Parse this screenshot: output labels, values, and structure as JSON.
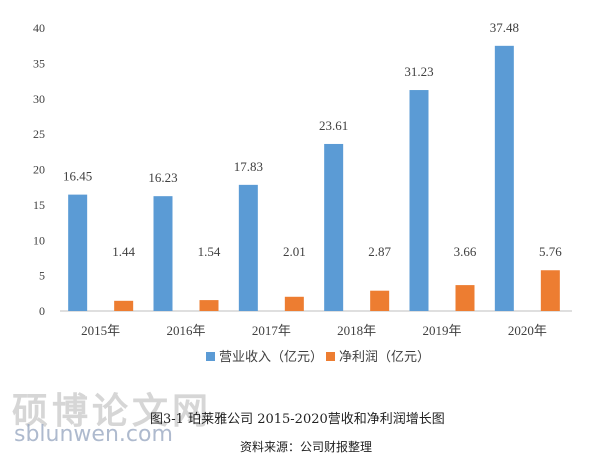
{
  "chart_data": {
    "type": "bar",
    "categories": [
      "2015年",
      "2016年",
      "2017年",
      "2018年",
      "2019年",
      "2020年"
    ],
    "series": [
      {
        "name": "营业收入（亿元）",
        "values": [
          16.45,
          16.23,
          17.83,
          23.61,
          31.23,
          37.48
        ],
        "color": "#5b9bd5"
      },
      {
        "name": "净利润（亿元）",
        "values": [
          1.44,
          1.54,
          2.01,
          2.87,
          3.66,
          5.76
        ],
        "color": "#ed7d31"
      }
    ],
    "data_labels": [
      [
        "16.45",
        "16.23",
        "17.83",
        "23.61",
        "31.23",
        "37.48"
      ],
      [
        "1.44",
        "1.54",
        "2.01",
        "2.87",
        "3.66",
        "5.76"
      ]
    ],
    "yticks": [
      "0",
      "5",
      "10",
      "15",
      "20",
      "25",
      "30",
      "35",
      "40"
    ],
    "ylim": [
      0,
      40
    ],
    "grid": false,
    "legend_position": "bottom"
  },
  "figure_caption": "图3-1 珀莱雅公司 2015-2020营收和净利润增长图",
  "source_note": "资料来源：公司财报整理",
  "watermark": {
    "title": "硕博论文网",
    "site": "sblunwen.com"
  }
}
